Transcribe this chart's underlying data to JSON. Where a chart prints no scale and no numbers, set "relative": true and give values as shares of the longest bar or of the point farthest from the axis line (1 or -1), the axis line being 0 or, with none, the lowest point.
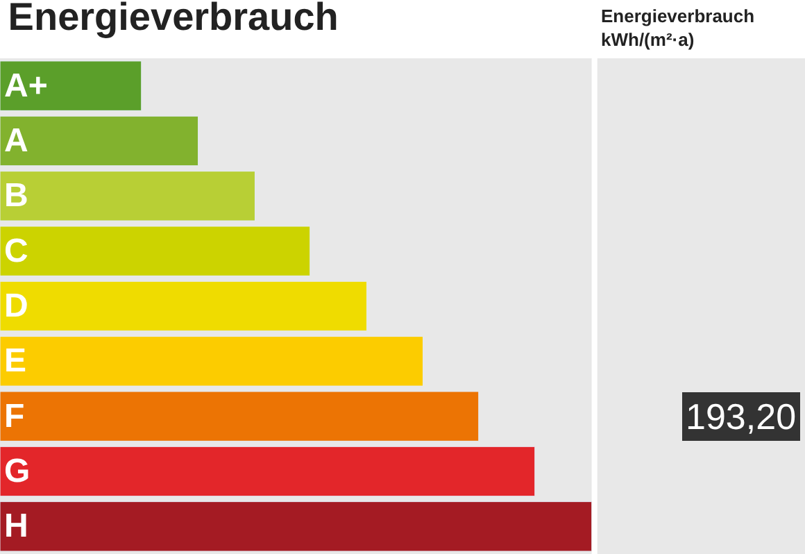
{
  "chart_data": {
    "type": "bar",
    "orientation": "horizontal",
    "relative": true,
    "title": "Energieverbrauch",
    "categories": [
      "A+",
      "A",
      "B",
      "C",
      "D",
      "E",
      "F",
      "G",
      "H"
    ],
    "values": [
      0.239,
      0.335,
      0.431,
      0.524,
      0.62,
      0.715,
      0.809,
      0.904,
      1
    ],
    "colors": [
      "#5b9f2a",
      "#82b22e",
      "#b8cf35",
      "#ccd300",
      "#efdc00",
      "#fccc00",
      "#ec7404",
      "#e3262a",
      "#a41b23"
    ],
    "annotations": [
      "Energieverbrauch",
      "kWh/(m²·a)",
      "193,20"
    ]
  }
}
